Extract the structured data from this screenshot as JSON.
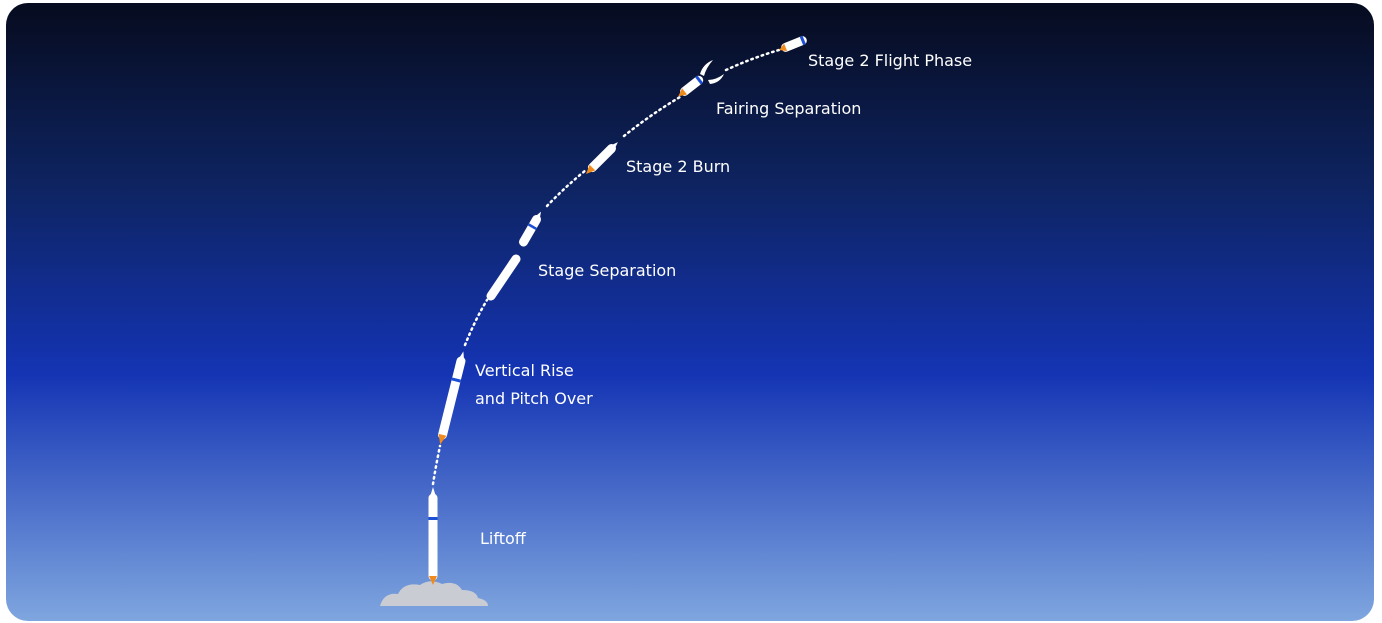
{
  "stages": [
    {
      "label": [
        "Liftoff"
      ]
    },
    {
      "label": [
        "Vertical Rise",
        "and Pitch Over"
      ]
    },
    {
      "label": [
        "Stage Separation"
      ]
    },
    {
      "label": [
        "Stage 2 Burn"
      ]
    },
    {
      "label": [
        "Fairing Separation"
      ]
    },
    {
      "label": [
        "Stage 2 Flight Phase"
      ]
    }
  ]
}
